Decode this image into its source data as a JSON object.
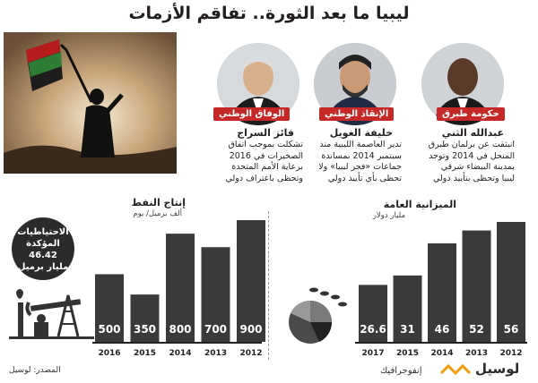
{
  "title": "ليبيا ما بعد الثورة.. تفاقم الأزمات",
  "people": [
    {
      "tag": "الوفاق الوطني",
      "name": "فائز السراج",
      "desc": "تشكلت بموجب اتفاق الصخيرات في 2016 برعاية الأمم المتحدة وتحظى باعتراف دولي"
    },
    {
      "tag": "الإنقاذ الوطني",
      "name": "خليفة الغويل",
      "desc": "تدير العاصمة الليبية منذ سبتمبر 2014 بمساندة جماعات «فجر ليبيا» ولا تحظى بأي تأييد دولي"
    },
    {
      "tag": "حكومة طبرق",
      "name": "عبدالله الثني",
      "desc": "انبثقت عن برلمان طبرق المنحل في 2014 وتوجد بمدينة البيضاء شرقي ليبيا وتحظى بتأييد دولي"
    }
  ],
  "reserves": {
    "line1": "الاحتياطيات",
    "line2": "المؤكدة",
    "value": "46.42",
    "unit": "مليار برميل"
  },
  "chart_data": [
    {
      "type": "bar",
      "title": "إنتاج النفط",
      "ylabel": "ألف برميل/ يوم",
      "categories": [
        "2016",
        "2015",
        "2014",
        "2013",
        "2012"
      ],
      "values": [
        500,
        350,
        800,
        700,
        900
      ],
      "ylim": [
        0,
        900
      ],
      "bar_color": "#3a3a3a"
    },
    {
      "type": "bar",
      "title": "الميزانية العامة",
      "ylabel": "مليار دولار",
      "categories": [
        "2017",
        "2015",
        "2014",
        "2013",
        "2012"
      ],
      "values": [
        26.6,
        31,
        46,
        52,
        56
      ],
      "ylim": [
        0,
        56
      ],
      "bar_color": "#3a3a3a"
    }
  ],
  "footer": {
    "source": "المصدر: لوسيل",
    "brand": "لوسيل",
    "brand_sub": "إنفوجرافيك"
  },
  "colors": {
    "tag_red": "#c62828",
    "accent_orange": "#f39c12",
    "bar": "#3a3a3a"
  }
}
